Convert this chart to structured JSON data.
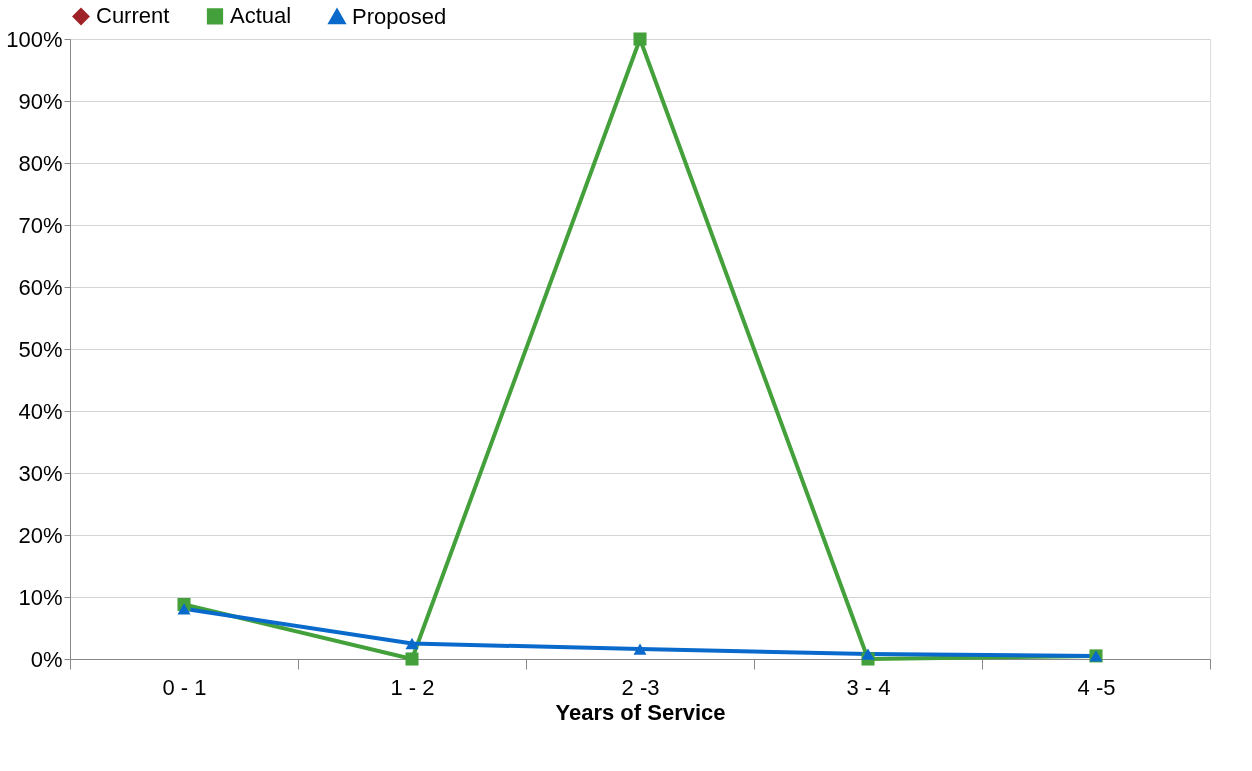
{
  "chart_data": {
    "type": "line",
    "xlabel": "Years of Service",
    "categories": [
      "0 - 1",
      "1 - 2",
      "2 -3",
      "3 - 4",
      "4 -5"
    ],
    "series": [
      {
        "name": "Current",
        "color": "#9e2228",
        "marker": "diamond",
        "values": [
          null,
          null,
          null,
          null,
          null
        ]
      },
      {
        "name": "Actual",
        "color": "#43a03a",
        "marker": "square",
        "values": [
          8.8,
          0,
          100,
          0,
          0.5
        ]
      },
      {
        "name": "Proposed",
        "color": "#0a6acb",
        "marker": "triangle",
        "values": [
          8.1,
          2.5,
          1.6,
          0.8,
          0.5
        ]
      }
    ],
    "ylim": [
      0,
      100
    ],
    "yticks": [
      {
        "value": 0,
        "label": "0%"
      },
      {
        "value": 10,
        "label": "10%"
      },
      {
        "value": 20,
        "label": "20%"
      },
      {
        "value": 30,
        "label": "30%"
      },
      {
        "value": 40,
        "label": "40%"
      },
      {
        "value": 50,
        "label": "50%"
      },
      {
        "value": 60,
        "label": "60%"
      },
      {
        "value": 70,
        "label": "70%"
      },
      {
        "value": 80,
        "label": "80%"
      },
      {
        "value": 90,
        "label": "90%"
      },
      {
        "value": 100,
        "label": "100%"
      }
    ],
    "grid": "y",
    "legend": "top",
    "line_style": "solid"
  }
}
